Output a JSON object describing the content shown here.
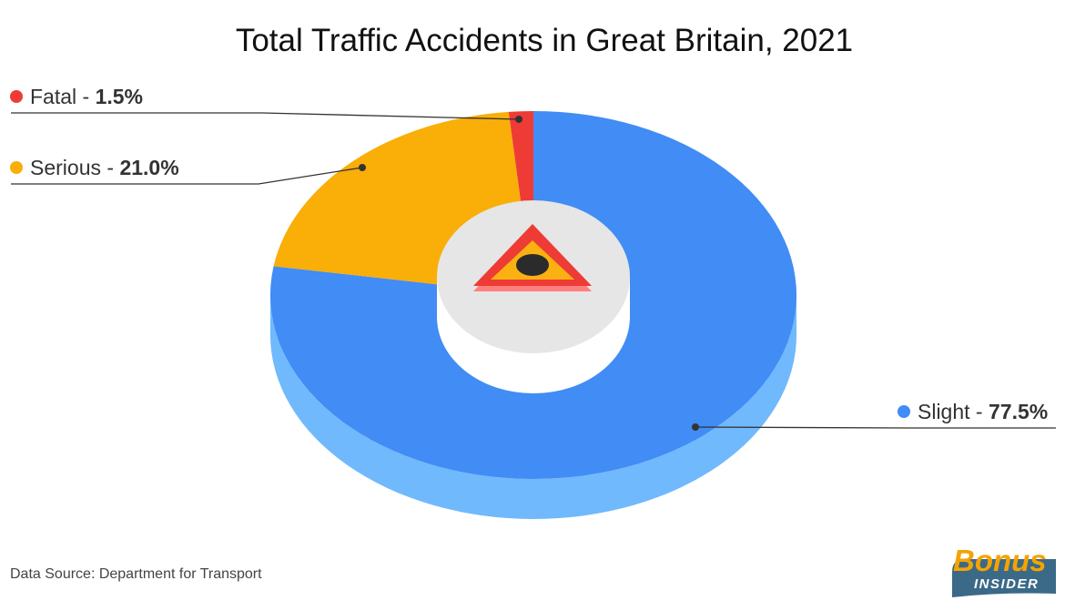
{
  "chart_data": {
    "type": "pie",
    "title": "Total Traffic Accidents in Great Britain, 2021",
    "slices": [
      {
        "label": "Fatal",
        "value": 1.5,
        "value_text": "1.5%",
        "color": "#ee3b36"
      },
      {
        "label": "Serious",
        "value": 21.0,
        "value_text": "21.0%",
        "color": "#f9ae08"
      },
      {
        "label": "Slight",
        "value": 77.5,
        "value_text": "77.5%",
        "color": "#418cf5",
        "side_color": "#70b9fc"
      }
    ],
    "legend_separator": " - ",
    "center_icon": "warning-triangle-icon"
  },
  "footer": {
    "source": "Data Source: Department for Transport"
  },
  "logo": {
    "word": "Bonus",
    "sub": "INSIDER",
    "word_color": "#f5a300",
    "badge_color": "#3a6a88"
  }
}
